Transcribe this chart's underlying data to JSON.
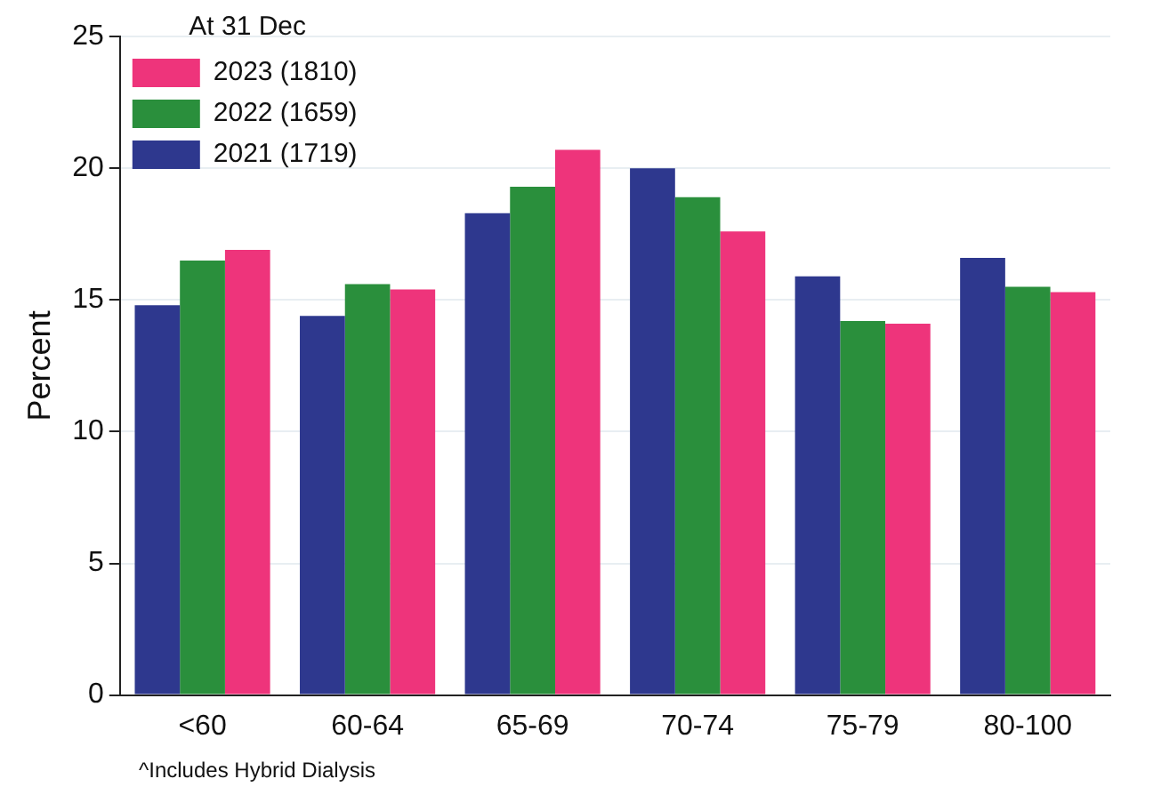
{
  "chart_data": {
    "type": "bar",
    "ylabel": "Percent",
    "legend_title": "At 31 Dec",
    "annotations": [
      "^Includes Hybrid Dialysis"
    ],
    "categories": [
      "<60",
      "60-64",
      "65-69",
      "70-74",
      "75-79",
      "80-100"
    ],
    "series": [
      {
        "name": "2021 (1719)",
        "color": "#2e388e",
        "values": [
          14.8,
          14.4,
          18.3,
          20.0,
          15.9,
          16.6
        ]
      },
      {
        "name": "2022 (1659)",
        "color": "#2a8f3c",
        "values": [
          16.5,
          15.6,
          19.3,
          18.9,
          14.2,
          15.5
        ]
      },
      {
        "name": "2023 (1810)",
        "color": "#ee347b",
        "values": [
          16.9,
          15.4,
          20.7,
          17.6,
          14.1,
          15.3
        ]
      }
    ],
    "ylim": [
      0,
      25
    ],
    "yticks": [
      0,
      5,
      10,
      15,
      20,
      25
    ],
    "grid": "y",
    "legend": "top left"
  }
}
